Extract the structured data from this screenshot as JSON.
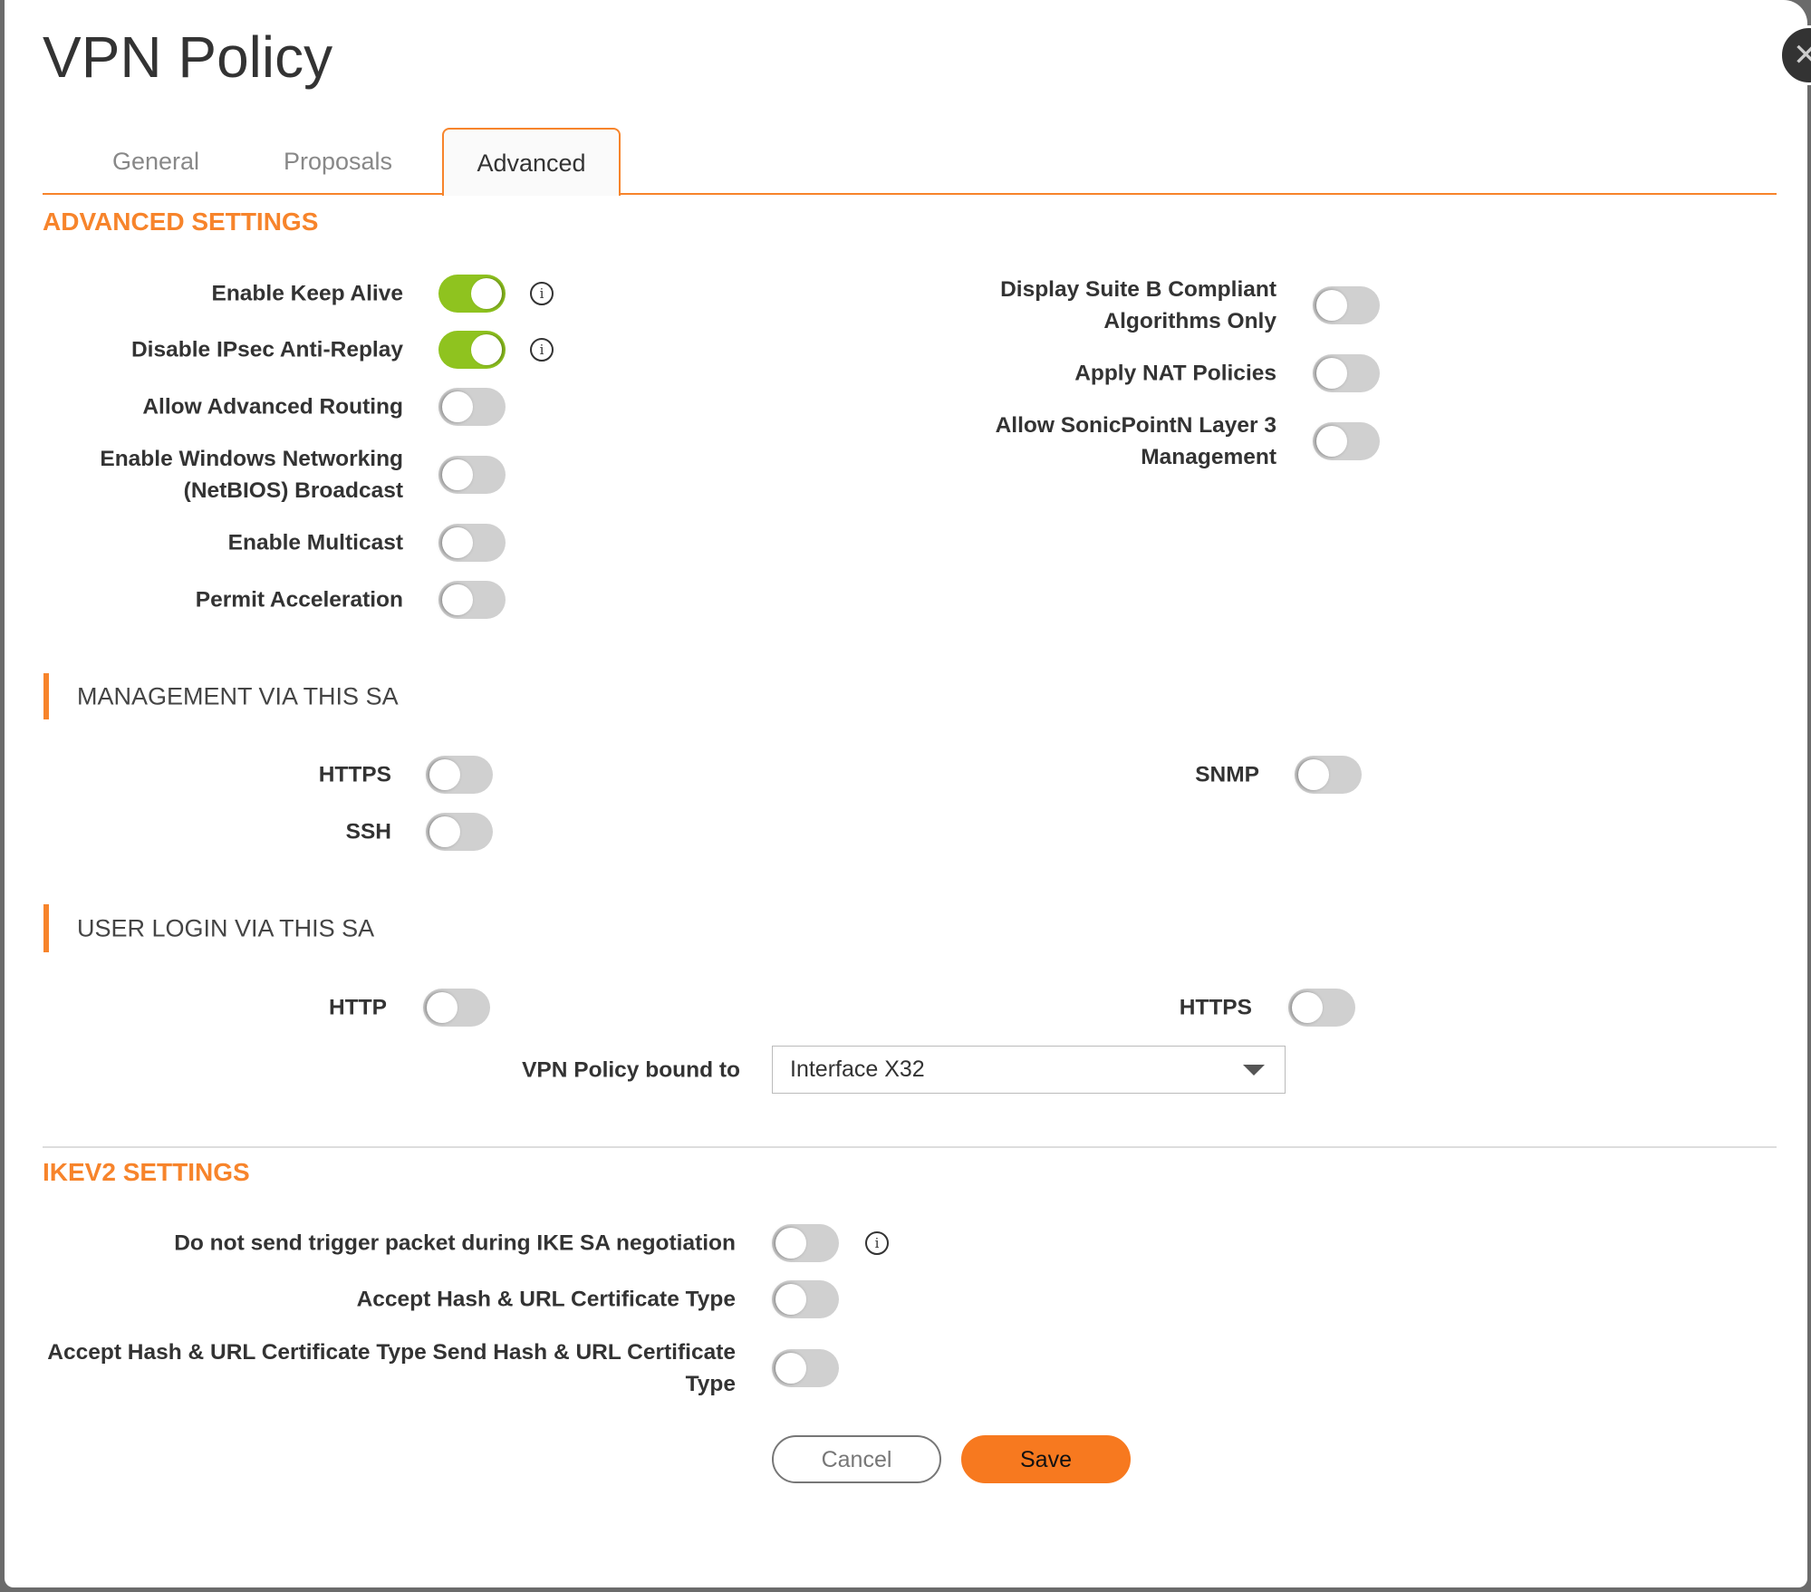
{
  "dialog": {
    "title": "VPN Policy",
    "close_icon": "close-icon"
  },
  "tabs": [
    {
      "label": "General",
      "active": false
    },
    {
      "label": "Proposals",
      "active": false
    },
    {
      "label": "Advanced",
      "active": true
    }
  ],
  "advanced": {
    "heading": "ADVANCED SETTINGS",
    "left": [
      {
        "label": "Enable Keep Alive",
        "on": true,
        "info": true
      },
      {
        "label": "Disable IPsec Anti-Replay",
        "on": true,
        "info": true
      },
      {
        "label": "Allow Advanced Routing",
        "on": false
      },
      {
        "label": "Enable Windows Networking\n(NetBIOS) Broadcast",
        "on": false
      },
      {
        "label": "Enable Multicast",
        "on": false
      },
      {
        "label": "Permit Acceleration",
        "on": false
      }
    ],
    "right": [
      {
        "label": "Display Suite B Compliant\nAlgorithms Only",
        "on": false
      },
      {
        "label": "Apply NAT Policies",
        "on": false
      },
      {
        "label": "Allow SonicPointN Layer 3\nManagement",
        "on": false
      }
    ]
  },
  "management": {
    "heading": "MANAGEMENT VIA THIS SA",
    "items": [
      {
        "label": "HTTPS",
        "on": false
      },
      {
        "label": "SSH",
        "on": false
      },
      {
        "label": "SNMP",
        "on": false
      }
    ]
  },
  "user_login": {
    "heading": "USER LOGIN VIA THIS SA",
    "items": [
      {
        "label": "HTTP",
        "on": false
      },
      {
        "label": "HTTPS",
        "on": false
      }
    ],
    "bound_label": "VPN Policy bound to",
    "bound_value": "Interface X32"
  },
  "ikev2": {
    "heading": "IKEV2 SETTINGS",
    "items": [
      {
        "label": "Do not send trigger packet during IKE SA negotiation",
        "on": false,
        "info": true
      },
      {
        "label": "Accept Hash & URL Certificate Type",
        "on": false
      },
      {
        "label": "Accept Hash & URL Certificate Type Send Hash & URL Certificate\nType",
        "on": false
      }
    ]
  },
  "buttons": {
    "cancel": "Cancel",
    "save": "Save"
  },
  "colors": {
    "accent": "#f7842b",
    "toggle_on": "#8fc31f",
    "toggle_off": "#d0d0d0"
  }
}
